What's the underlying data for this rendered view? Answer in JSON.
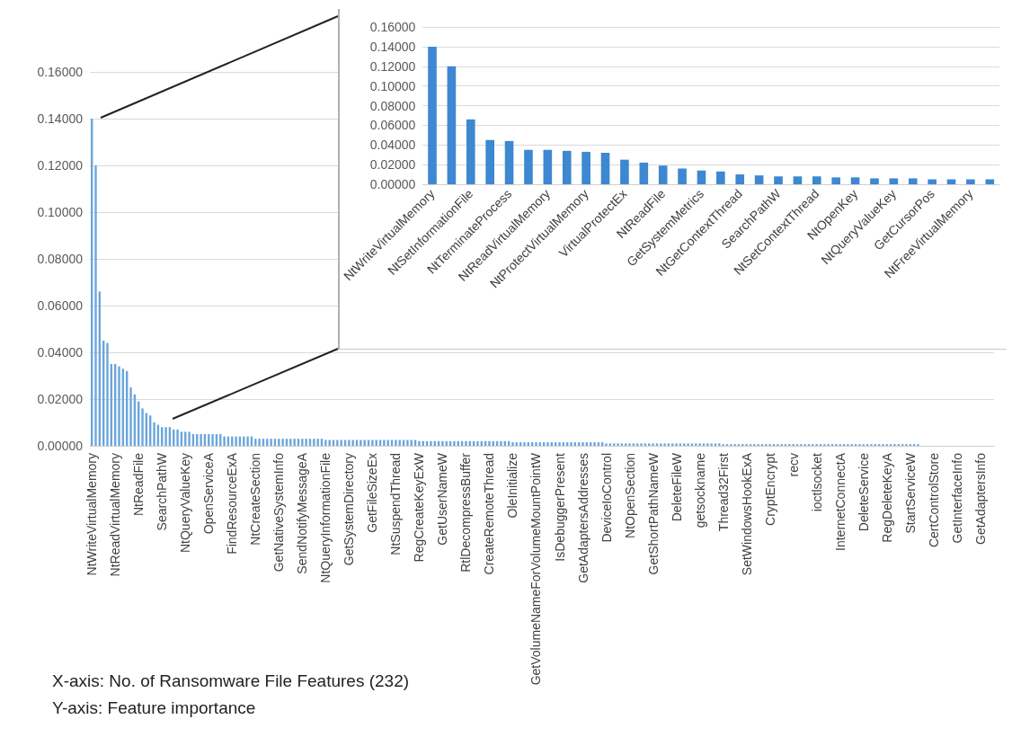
{
  "chart_data": [
    {
      "type": "bar",
      "annotations": [
        "X-axis: No. of Ransomware File Features (232)",
        "Y-axis: Feature importance"
      ],
      "categories": [
        "NtWriteVirtualMemory",
        null,
        null,
        null,
        null,
        null,
        "NtReadVirtualMemory",
        null,
        null,
        null,
        null,
        null,
        "NtReadFile",
        null,
        null,
        null,
        null,
        null,
        "SearchPathW",
        null,
        null,
        null,
        null,
        null,
        "NtQueryValueKey",
        null,
        null,
        null,
        null,
        null,
        "OpenServiceA",
        null,
        null,
        null,
        null,
        null,
        "FindResourceExA",
        null,
        null,
        null,
        null,
        null,
        "NtCreateSection",
        null,
        null,
        null,
        null,
        null,
        "GetNativeSystemInfo",
        null,
        null,
        null,
        null,
        null,
        "SendNotifyMessageA",
        null,
        null,
        null,
        null,
        null,
        "NtQueryInformationFile",
        null,
        null,
        null,
        null,
        null,
        "GetSystemDirectory",
        null,
        null,
        null,
        null,
        null,
        "GetFileSizeEx",
        null,
        null,
        null,
        null,
        null,
        "NtSuspendThread",
        null,
        null,
        null,
        null,
        null,
        "RegCreateKeyExW",
        null,
        null,
        null,
        null,
        null,
        "GetUserNameW",
        null,
        null,
        null,
        null,
        null,
        "RtlDecompressBuffer",
        null,
        null,
        null,
        null,
        null,
        "CreateRemoteThread",
        null,
        null,
        null,
        null,
        null,
        "OleInitialize",
        null,
        null,
        null,
        null,
        null,
        "GetVolumeNameForVolumeMountPointW",
        null,
        null,
        null,
        null,
        null,
        "IsDebuggerPresent",
        null,
        null,
        null,
        null,
        null,
        "GetAdaptersAddresses",
        null,
        null,
        null,
        null,
        null,
        "DeviceIoControl",
        null,
        null,
        null,
        null,
        null,
        "NtOpenSection",
        null,
        null,
        null,
        null,
        null,
        "GetShortPathNameW",
        null,
        null,
        null,
        null,
        null,
        "DeleteFileW",
        null,
        null,
        null,
        null,
        null,
        "getsockname",
        null,
        null,
        null,
        null,
        null,
        "Thread32First",
        null,
        null,
        null,
        null,
        null,
        "SetWindowsHookExA",
        null,
        null,
        null,
        null,
        null,
        "CryptEncrypt",
        null,
        null,
        null,
        null,
        null,
        "recv",
        null,
        null,
        null,
        null,
        null,
        "ioctlsocket",
        null,
        null,
        null,
        null,
        null,
        "InternetConnectA",
        null,
        null,
        null,
        null,
        null,
        "DeleteService",
        null,
        null,
        null,
        null,
        null,
        "RegDeleteKeyA",
        null,
        null,
        null,
        null,
        null,
        "StartServiceW",
        null,
        null,
        null,
        null,
        null,
        "CertControlStore",
        null,
        null,
        null,
        null,
        null,
        "GetInterfaceInfo",
        null,
        null,
        null,
        null,
        null,
        "GetAdaptersInfo",
        null,
        null,
        null
      ],
      "values": [
        0.14,
        0.12,
        0.066,
        0.045,
        0.044,
        0.035,
        0.035,
        0.034,
        0.033,
        0.032,
        0.025,
        0.022,
        0.019,
        0.016,
        0.014,
        0.013,
        0.01,
        0.009,
        0.008,
        0.008,
        0.008,
        0.007,
        0.007,
        0.006,
        0.006,
        0.006,
        0.005,
        0.005,
        0.005,
        0.005,
        0.005,
        0.005,
        0.005,
        0.005,
        0.004,
        0.004,
        0.004,
        0.004,
        0.004,
        0.004,
        0.004,
        0.004,
        0.003,
        0.003,
        0.003,
        0.003,
        0.003,
        0.003,
        0.003,
        0.003,
        0.003,
        0.003,
        0.003,
        0.003,
        0.003,
        0.003,
        0.003,
        0.003,
        0.003,
        0.003,
        0.0025,
        0.0025,
        0.0025,
        0.0025,
        0.0025,
        0.0025,
        0.0025,
        0.0025,
        0.0025,
        0.0025,
        0.0025,
        0.0025,
        0.0025,
        0.0025,
        0.0025,
        0.0025,
        0.0025,
        0.0025,
        0.0025,
        0.0025,
        0.0025,
        0.0025,
        0.0025,
        0.0025,
        0.002,
        0.002,
        0.002,
        0.002,
        0.002,
        0.002,
        0.002,
        0.002,
        0.002,
        0.002,
        0.002,
        0.002,
        0.002,
        0.002,
        0.002,
        0.002,
        0.002,
        0.002,
        0.002,
        0.002,
        0.002,
        0.002,
        0.002,
        0.002,
        0.0015,
        0.0015,
        0.0015,
        0.0015,
        0.0015,
        0.0015,
        0.0015,
        0.0015,
        0.0015,
        0.0015,
        0.0015,
        0.0015,
        0.0015,
        0.0015,
        0.0015,
        0.0015,
        0.0015,
        0.0015,
        0.0015,
        0.0015,
        0.0015,
        0.0015,
        0.0015,
        0.0015,
        0.001,
        0.001,
        0.001,
        0.001,
        0.001,
        0.001,
        0.001,
        0.001,
        0.001,
        0.001,
        0.001,
        0.001,
        0.001,
        0.001,
        0.001,
        0.001,
        0.001,
        0.001,
        0.001,
        0.001,
        0.001,
        0.001,
        0.001,
        0.001,
        0.001,
        0.001,
        0.001,
        0.001,
        0.001,
        0.001,
        0.0007,
        0.0007,
        0.0007,
        0.0007,
        0.0007,
        0.0007,
        0.0007,
        0.0007,
        0.0007,
        0.0007,
        0.0007,
        0.0007,
        0.0007,
        0.0007,
        0.0007,
        0.0007,
        0.0007,
        0.0007,
        0.0007,
        0.0007,
        0.0007,
        0.0007,
        0.0007,
        0.0007,
        0.0007,
        0.0007,
        0.0007,
        0.0007,
        0.0007,
        0.0007,
        0.0007,
        0.0007,
        0.0007,
        0.0007,
        0.0007,
        0.0007,
        0.0007,
        0.0007,
        0.0007,
        0.0007,
        0.0007,
        0.0007,
        0.0007,
        0.0007,
        0.0007,
        0.0007,
        0.0007,
        0.0007,
        0.0007,
        0.0007,
        0.0007,
        0,
        0,
        0,
        0,
        0,
        0,
        0,
        0,
        0,
        0,
        0,
        0,
        0,
        0,
        0,
        0,
        0,
        0,
        0
      ],
      "color": "#6aa5db",
      "ylim": [
        0,
        0.16
      ],
      "grid": "y",
      "yticks": [
        {
          "value": 0,
          "label": "0.00000"
        },
        {
          "value": 0.02,
          "label": "0.02000"
        },
        {
          "value": 0.04,
          "label": "0.04000"
        },
        {
          "value": 0.06,
          "label": "0.06000"
        },
        {
          "value": 0.08,
          "label": "0.08000"
        },
        {
          "value": 0.1,
          "label": "0.10000"
        },
        {
          "value": 0.12,
          "label": "0.12000"
        },
        {
          "value": 0.14,
          "label": "0.14000"
        },
        {
          "value": 0.16,
          "label": "0.16000"
        }
      ],
      "tick_labels": "xy"
    },
    {
      "type": "bar",
      "categories": [
        "NtWriteVirtualMemory",
        null,
        "NtSetInformationFile",
        null,
        "NtTerminateProcess",
        null,
        "NtReadVirtualMemory",
        null,
        "NtProtectVirtualMemory",
        null,
        "VirtualProtectEx",
        null,
        "NtReadFile",
        null,
        "GetSystemMetrics",
        null,
        "NtGetContextThread",
        null,
        "SearchPathW",
        null,
        "NtSetContextThread",
        null,
        "NtOpenKey",
        null,
        "NtQueryValueKey",
        null,
        "GetCursorPos",
        null,
        "NtFreeVirtualMemory",
        null
      ],
      "values": [
        0.14,
        0.12,
        0.066,
        0.045,
        0.044,
        0.035,
        0.035,
        0.034,
        0.033,
        0.032,
        0.025,
        0.022,
        0.019,
        0.016,
        0.014,
        0.013,
        0.01,
        0.009,
        0.008,
        0.008,
        0.008,
        0.007,
        0.007,
        0.006,
        0.006,
        0.006,
        0.005,
        0.005,
        0.005,
        0.005
      ],
      "color": "#3d88d1",
      "ylim": [
        0,
        0.16
      ],
      "yticks": [
        {
          "value": 0,
          "label": "0.00000"
        },
        {
          "value": 0.02,
          "label": "0.02000"
        },
        {
          "value": 0.04,
          "label": "0.04000"
        },
        {
          "value": 0.06,
          "label": "0.06000"
        },
        {
          "value": 0.08,
          "label": "0.08000"
        },
        {
          "value": 0.1,
          "label": "0.10000"
        },
        {
          "value": 0.12,
          "label": "0.12000"
        },
        {
          "value": 0.14,
          "label": "0.14000"
        },
        {
          "value": 0.16,
          "label": "0.16000"
        }
      ],
      "grid": "y"
    }
  ]
}
